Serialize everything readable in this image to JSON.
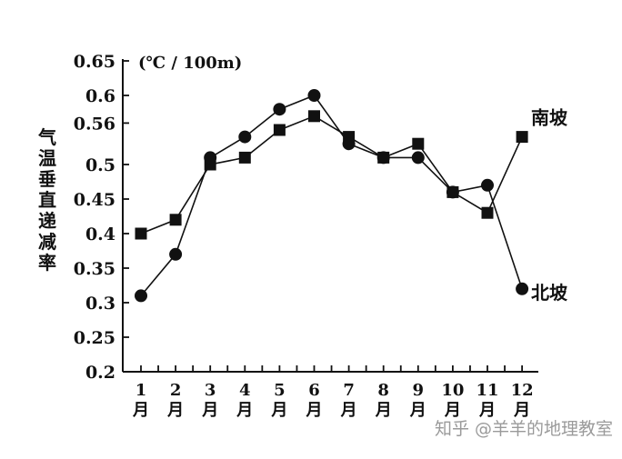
{
  "chart_data": {
    "type": "line",
    "unit": "(℃ / 100m)",
    "ylabel": "气温垂直递减率",
    "ylim": [
      0.2,
      0.65
    ],
    "yticks": [
      "0.65",
      "0.6",
      "0.56",
      "0.5",
      "0.45",
      "0.4",
      "0.35",
      "0.3",
      "0.25",
      "0.2"
    ],
    "categories": [
      {
        "num": "1",
        "unit": "月"
      },
      {
        "num": "2",
        "unit": "月"
      },
      {
        "num": "3",
        "unit": "月"
      },
      {
        "num": "4",
        "unit": "月"
      },
      {
        "num": "5",
        "unit": "月"
      },
      {
        "num": "6",
        "unit": "月"
      },
      {
        "num": "7",
        "unit": "月"
      },
      {
        "num": "8",
        "unit": "月"
      },
      {
        "num": "9",
        "unit": "月"
      },
      {
        "num": "10",
        "unit": "月"
      },
      {
        "num": "11",
        "unit": "月"
      },
      {
        "num": "12",
        "unit": "月"
      }
    ],
    "series": [
      {
        "name": "南坡",
        "marker": "square",
        "values": [
          0.4,
          0.42,
          0.5,
          0.51,
          0.55,
          0.57,
          0.54,
          0.51,
          0.53,
          0.46,
          0.43,
          0.54
        ]
      },
      {
        "name": "北坡",
        "marker": "circle",
        "values": [
          0.31,
          0.37,
          0.51,
          0.54,
          0.58,
          0.6,
          0.53,
          0.51,
          0.51,
          0.46,
          0.47,
          0.32
        ]
      }
    ],
    "grid": false,
    "legend": "labels at right end of each line"
  },
  "watermark": "知乎 @羊羊的地理教室"
}
